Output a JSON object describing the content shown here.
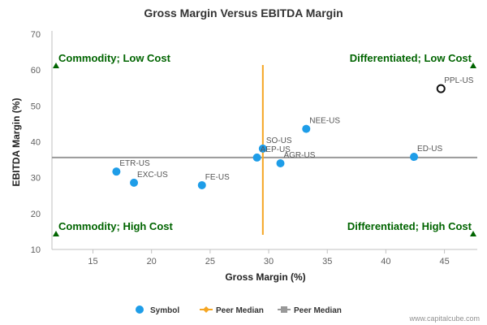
{
  "chart_data": {
    "type": "scatter",
    "title": "Gross Margin Versus EBITDA Margin",
    "xlabel": "Gross Margin (%)",
    "ylabel": "EBITDA Margin (%)",
    "xlim": [
      11.5,
      47.8
    ],
    "ylim": [
      10,
      70
    ],
    "x_ticks": [
      "15",
      "20",
      "25",
      "30",
      "35",
      "40",
      "45"
    ],
    "y_ticks": [
      "10",
      "20",
      "30",
      "40",
      "50",
      "60",
      "70"
    ],
    "x_tick_values": [
      15,
      20,
      25,
      30,
      35,
      40,
      45
    ],
    "y_tick_values": [
      10,
      20,
      30,
      40,
      50,
      60,
      70
    ],
    "grid": false,
    "legend_position": "bottom",
    "points": [
      {
        "label": "PPL-US",
        "x": 44.7,
        "y": 54.8,
        "hollow": true
      },
      {
        "label": "NEE-US",
        "x": 33.2,
        "y": 43.6,
        "hollow": false
      },
      {
        "label": "ED-US",
        "x": 42.4,
        "y": 35.8,
        "hollow": false
      },
      {
        "label": "SO-US",
        "x": 29.5,
        "y": 38.1,
        "hollow": false
      },
      {
        "label": "AEP-US",
        "x": 29.0,
        "y": 35.6,
        "hollow": false
      },
      {
        "label": "AGR-US",
        "x": 31.0,
        "y": 34.0,
        "hollow": false
      },
      {
        "label": "ETR-US",
        "x": 17.0,
        "y": 31.7,
        "hollow": false
      },
      {
        "label": "EXC-US",
        "x": 18.5,
        "y": 28.6,
        "hollow": false
      },
      {
        "label": "FE-US",
        "x": 24.3,
        "y": 27.9,
        "hollow": false
      }
    ],
    "peer_median_x": 29.5,
    "peer_median_y": 35.6,
    "quadrants": {
      "top_left": "Commodity; Low Cost",
      "top_right": "Differentiated; Low Cost",
      "bottom_left": "Commodity; High Cost",
      "bottom_right": "Differentiated; High Cost"
    },
    "legend": [
      {
        "label": "Symbol",
        "kind": "dot"
      },
      {
        "label": "Peer Median",
        "kind": "diamond"
      },
      {
        "label": "Peer Median",
        "kind": "square"
      }
    ]
  },
  "credit": "www.capitalcube.com",
  "colors": {
    "point": "#1e9de8",
    "hollow_stroke": "#111111",
    "vertical_median": "#f5a623",
    "horizontal_median": "#999999",
    "quadrant_text": "#006400",
    "axis": "#c0c0c0"
  }
}
